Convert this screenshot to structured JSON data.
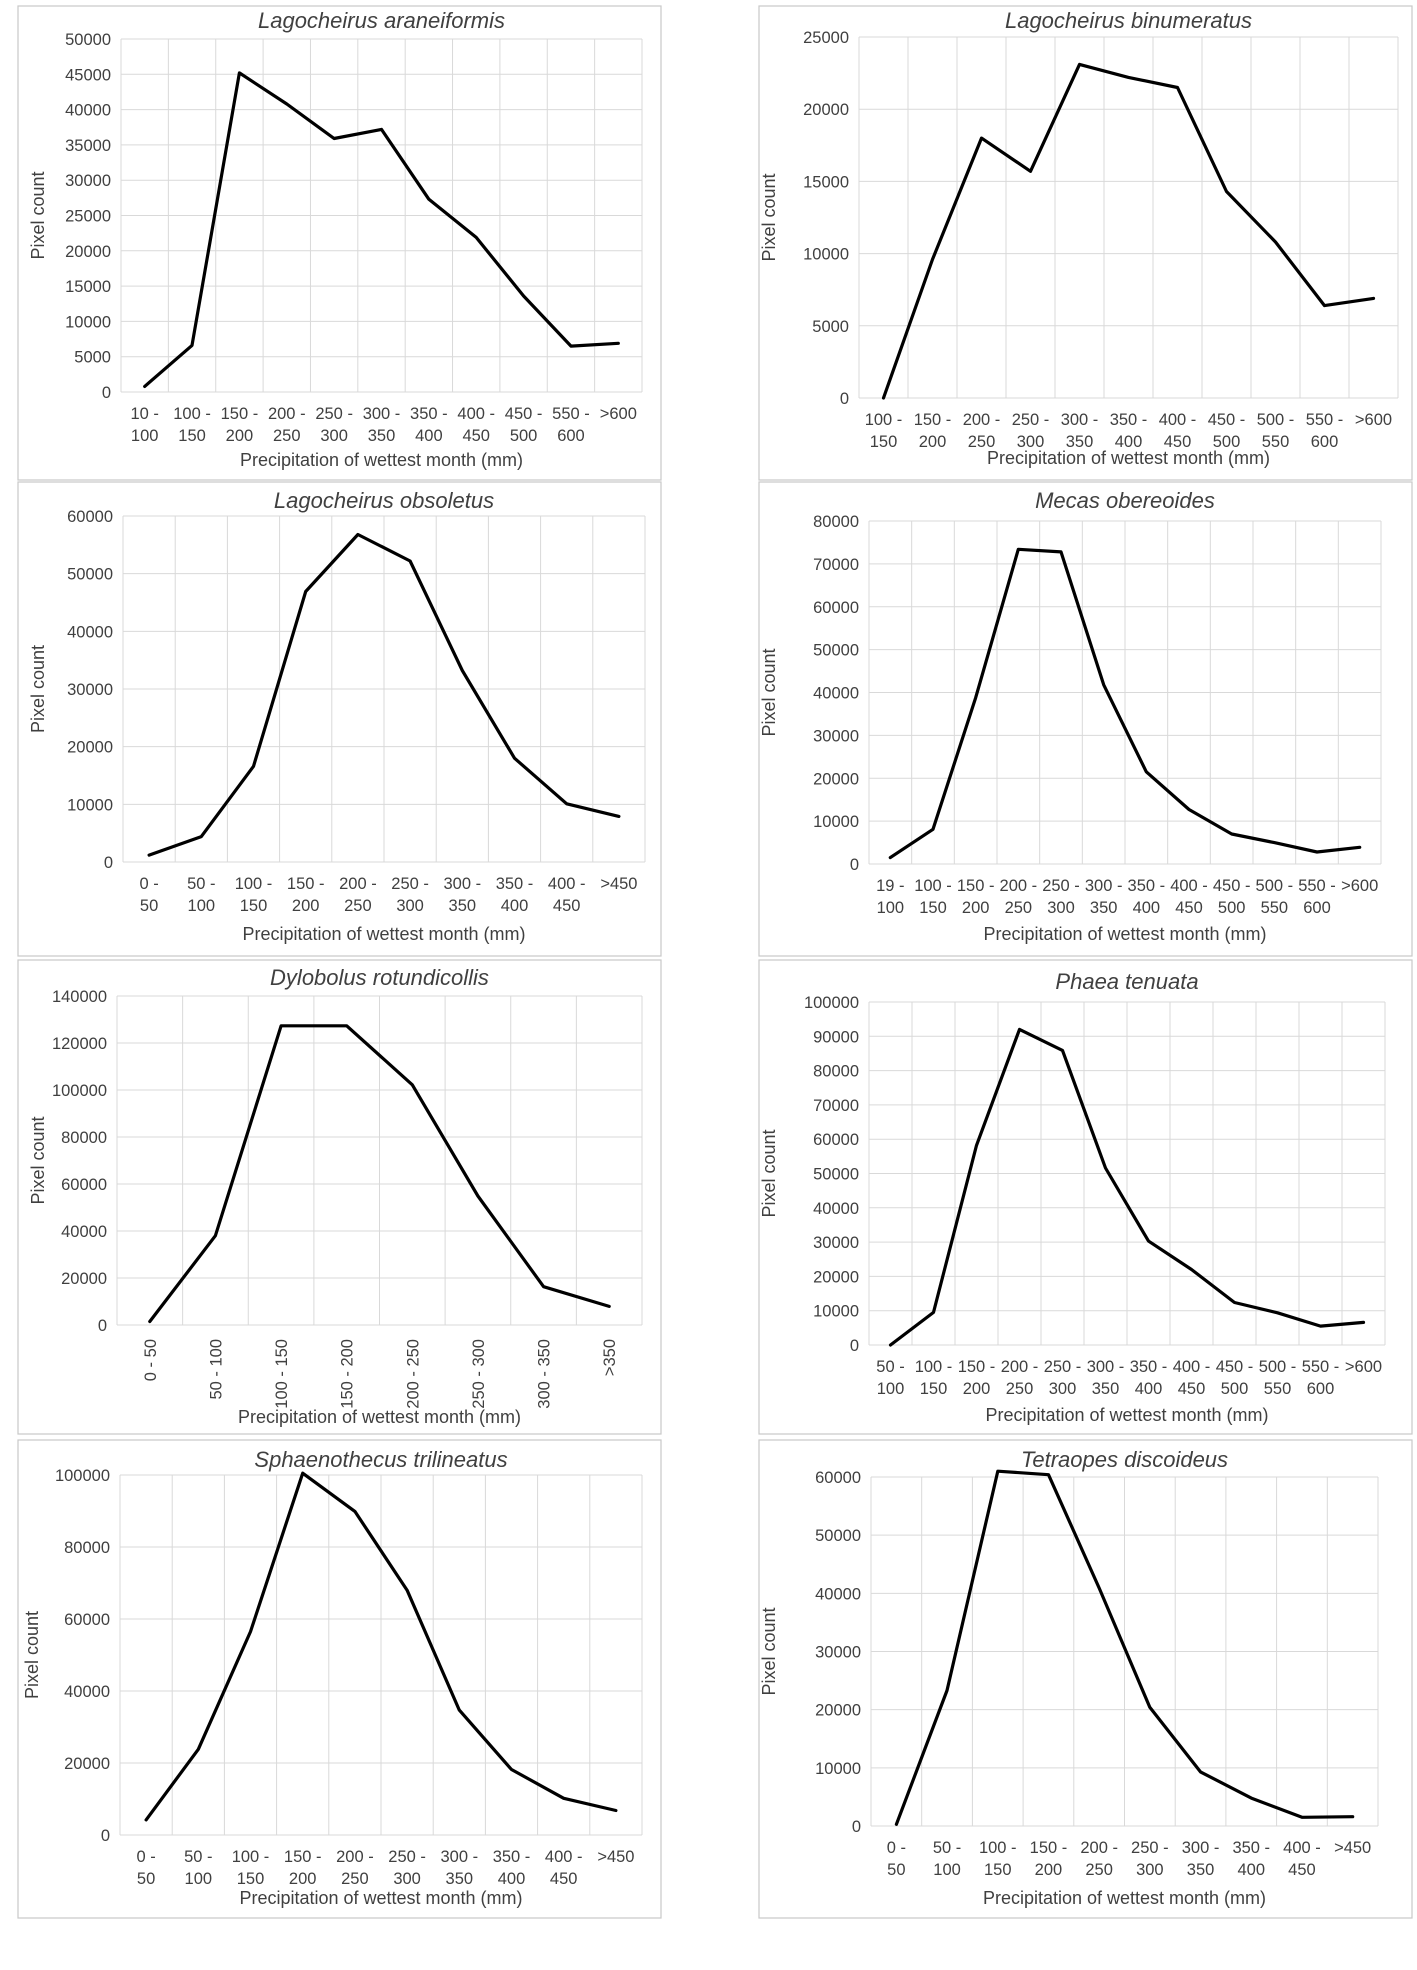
{
  "chart_data": [
    {
      "type": "line",
      "title": "Lagocheirus araneiformis",
      "xlabel": "Precipitation of wettest month (mm)",
      "ylabel": "Pixel count",
      "ylim": [
        0,
        50000
      ],
      "yticks": [
        0,
        5000,
        10000,
        15000,
        20000,
        25000,
        30000,
        35000,
        40000,
        45000,
        50000
      ],
      "categories": [
        "10 - 100",
        "100 - 150",
        "150 - 200",
        "200 - 250",
        "250 - 300",
        "300 - 350",
        "350 - 400",
        "400 - 450",
        "450 - 500",
        "550 - 600",
        ">600"
      ],
      "series": [
        {
          "values": [
            800,
            6600,
            45200,
            40800,
            35900,
            37200,
            27300,
            21900,
            13600,
            6500,
            6900
          ]
        }
      ],
      "grid": true
    },
    {
      "type": "line",
      "title": "Lagocheirus binumeratus",
      "xlabel": "Precipitation of wettest month (mm)",
      "ylabel": "Pixel count",
      "ylim": [
        0,
        25000
      ],
      "yticks": [
        0,
        5000,
        10000,
        15000,
        20000,
        25000
      ],
      "categories": [
        "100 - 150",
        "150 - 200",
        "200 - 250",
        "250 - 300",
        "300 - 350",
        "350 - 400",
        "400 - 450",
        "450 - 500",
        "500 - 550",
        "550 - 600",
        ">600"
      ],
      "series": [
        {
          "values": [
            0,
            9600,
            18000,
            15700,
            23100,
            22200,
            21500,
            14300,
            10800,
            6400,
            6900
          ]
        }
      ],
      "grid": true
    },
    {
      "type": "line",
      "title": "Lagocheirus obsoletus",
      "xlabel": "Precipitation of wettest month (mm)",
      "ylabel": "Pixel count",
      "ylim": [
        0,
        60000
      ],
      "yticks": [
        0,
        10000,
        20000,
        30000,
        40000,
        50000,
        60000
      ],
      "categories": [
        "0 - 50",
        "50 - 100",
        "100 - 150",
        "150 - 200",
        "200 - 250",
        "250 - 300",
        "300 - 350",
        "350 - 400",
        "400 - 450",
        ">450"
      ],
      "series": [
        {
          "values": [
            1200,
            4400,
            16600,
            46900,
            56800,
            52200,
            33200,
            18000,
            10100,
            7900
          ]
        }
      ],
      "grid": true
    },
    {
      "type": "line",
      "title": "Mecas obereoides",
      "xlabel": "Precipitation of wettest month (mm)",
      "ylabel": "Pixel count",
      "ylim": [
        0,
        80000
      ],
      "yticks": [
        0,
        10000,
        20000,
        30000,
        40000,
        50000,
        60000,
        70000,
        80000
      ],
      "categories": [
        "19 - 100",
        "100 - 150",
        "150 - 200",
        "200 - 250",
        "250 - 300",
        "300 - 350",
        "350 - 400",
        "400 - 450",
        "450 - 500",
        "500 - 550",
        "550 - 600",
        ">600"
      ],
      "series": [
        {
          "values": [
            1500,
            8100,
            38800,
            73400,
            72800,
            41800,
            21500,
            12700,
            7000,
            5000,
            2800,
            3900
          ]
        }
      ],
      "grid": true
    },
    {
      "type": "line",
      "title": "Dylobolus rotundicollis",
      "xlabel": "Precipitation of wettest month (mm)",
      "ylabel": "Pixel count",
      "ylim": [
        0,
        140000
      ],
      "yticks": [
        0,
        20000,
        40000,
        60000,
        80000,
        100000,
        120000,
        140000
      ],
      "categories": [
        "0 - 50",
        "50 - 100",
        "100 - 150",
        "150 - 200",
        "200 - 250",
        "250 - 300",
        "300 - 350",
        ">350"
      ],
      "rotate_x_labels": true,
      "series": [
        {
          "values": [
            1500,
            38000,
            127300,
            127300,
            102200,
            54900,
            16300,
            7900
          ]
        }
      ],
      "grid": true
    },
    {
      "type": "line",
      "title": "Phaea tenuata",
      "xlabel": "Precipitation of wettest month (mm)",
      "ylabel": "Pixel count",
      "ylim": [
        0,
        100000
      ],
      "yticks": [
        0,
        10000,
        20000,
        30000,
        40000,
        50000,
        60000,
        70000,
        80000,
        90000,
        100000
      ],
      "categories": [
        "50 - 100",
        "100 - 150",
        "150 - 200",
        "200 - 250",
        "250 - 300",
        "300 - 350",
        "350 - 400",
        "400 - 450",
        "450 - 500",
        "500 - 550",
        "550 - 600",
        ">600"
      ],
      "series": [
        {
          "values": [
            0,
            9500,
            58200,
            92000,
            85900,
            51600,
            30300,
            22000,
            12400,
            9400,
            5500,
            6600
          ]
        }
      ],
      "grid": true
    },
    {
      "type": "line",
      "title": "Sphaenothecus trilineatus",
      "xlabel": "Precipitation of wettest month (mm)",
      "ylabel": "Pixel count",
      "ylim": [
        0,
        100000
      ],
      "yticks": [
        0,
        20000,
        40000,
        60000,
        80000,
        100000
      ],
      "categories": [
        "0 - 50",
        "50 - 100",
        "100 - 150",
        "150 - 200",
        "200 - 250",
        "250 - 300",
        "300 - 350",
        "350 - 400",
        "400 - 450",
        ">450"
      ],
      "series": [
        {
          "values": [
            4200,
            23800,
            56500,
            100500,
            89900,
            68000,
            34700,
            18200,
            10200,
            6800
          ]
        }
      ],
      "grid": true
    },
    {
      "type": "line",
      "title": "Tetraopes discoideus",
      "xlabel": "Precipitation of wettest month (mm)",
      "ylabel": "Pixel count",
      "ylim": [
        0,
        60000
      ],
      "yticks": [
        0,
        10000,
        20000,
        30000,
        40000,
        50000,
        60000
      ],
      "categories": [
        "0 - 50",
        "50 - 100",
        "100 - 150",
        "150 - 200",
        "200 - 250",
        "250 - 300",
        "300 - 350",
        "350 - 400",
        "400 - 450",
        ">450"
      ],
      "series": [
        {
          "values": [
            300,
            23300,
            61000,
            60400,
            40900,
            20400,
            9300,
            4800,
            1500,
            1600
          ]
        }
      ],
      "grid": true
    }
  ]
}
